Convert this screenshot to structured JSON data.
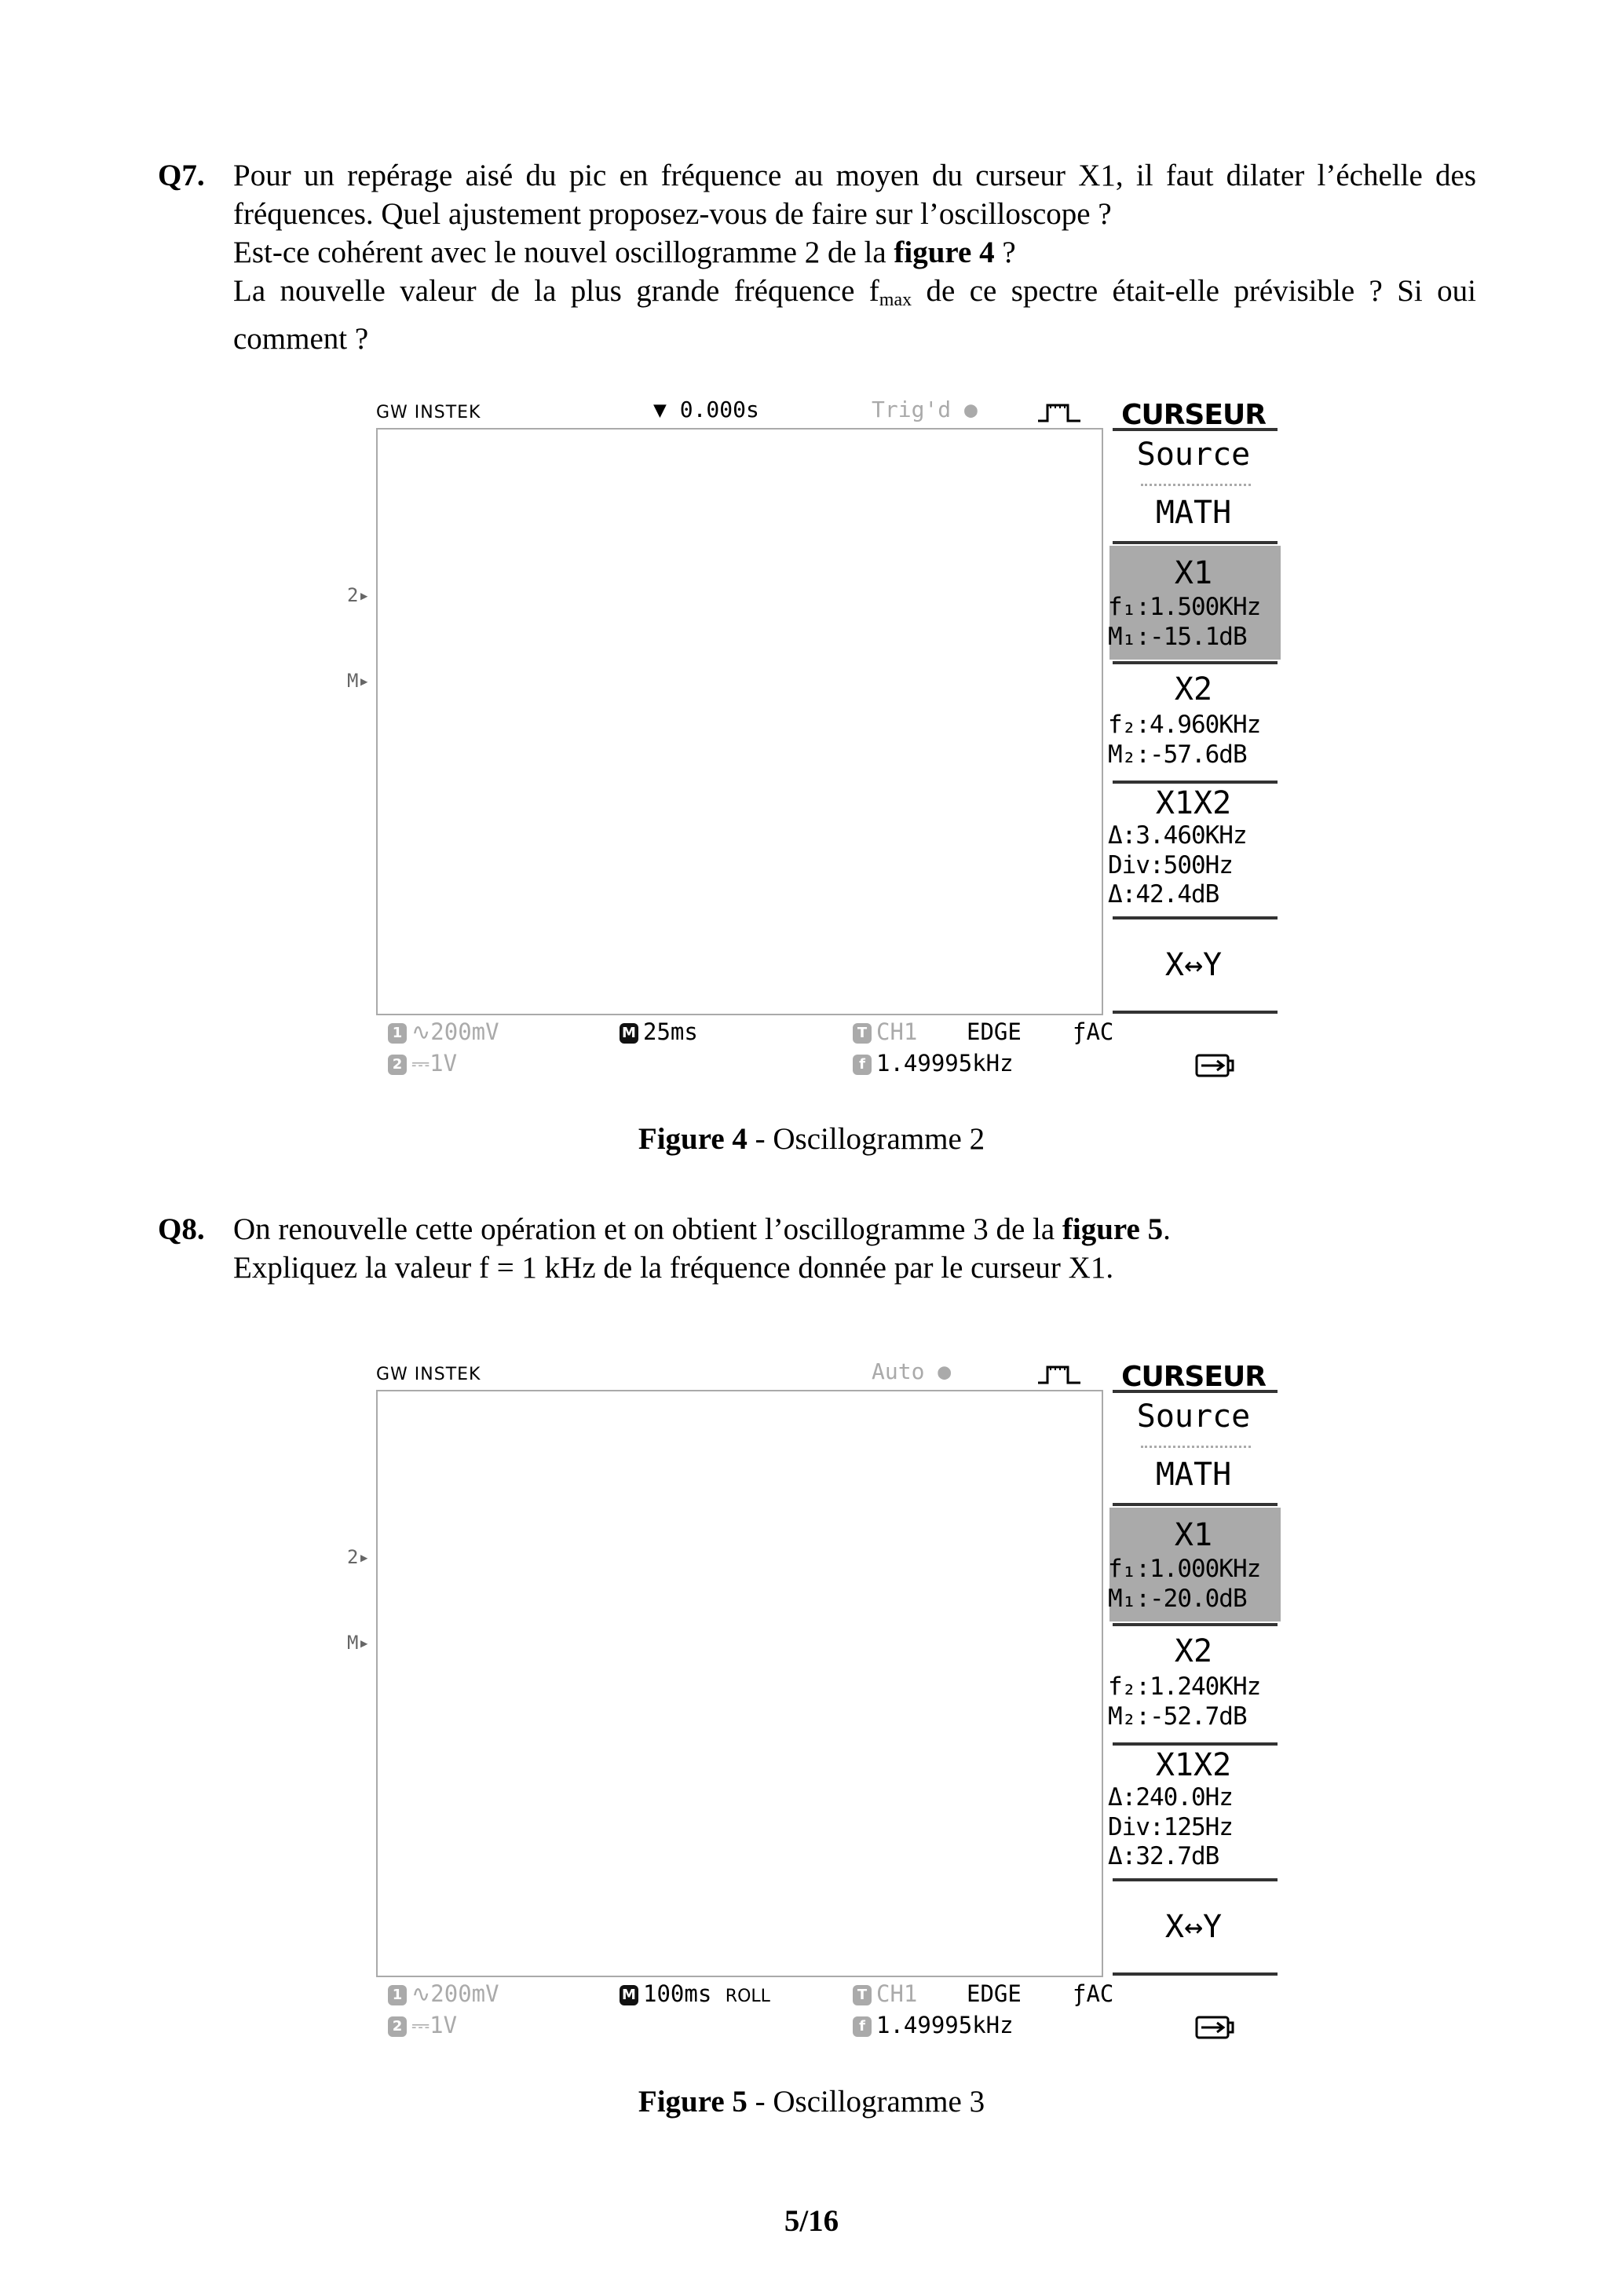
{
  "q7": {
    "number": "Q7.",
    "line1": "Pour un repérage aisé du pic en fréquence au moyen du curseur X1, il faut dilater l’échelle des",
    "line2": "fréquences. Quel ajustement proposez-vous de faire sur l’oscilloscope ?",
    "line3_a": "Est-ce cohérent avec le nouvel oscillogramme 2 de la ",
    "line3_bold": "figure 4",
    "line3_b": " ?",
    "line4_a": "La nouvelle valeur de la plus grande fréquence f",
    "line4_sub": "max",
    "line4_b": " de ce spectre était-elle prévisible ? Si oui",
    "line5": "comment ?"
  },
  "q8": {
    "number": "Q8.",
    "line1_a": "On renouvelle cette opération et on obtient l’oscillogramme 3 de la ",
    "line1_bold": "figure 5",
    "line1_b": ".",
    "line2": "Expliquez la valeur f = 1 kHz de la fréquence donnée par le curseur X1."
  },
  "fig4": {
    "brand": "GW INSTEK",
    "time_offset": "▼ 0.000s",
    "trigger_status": "Trig'd",
    "menu_title": "CURSEUR",
    "source_label": "Source",
    "source_value": "MATH",
    "x1_label": "X1",
    "f1": "f₁:1.500KHz",
    "m1": "M₁:-15.1dB",
    "x2_label": "X2",
    "f2": "f₂:4.960KHz",
    "m2": "M₂:-57.6dB",
    "x1x2_label": "X1X2",
    "delta_f": "Δ:3.460KHz",
    "div": "Div:500Hz",
    "delta_db": "Δ:42.4dB",
    "swap": "X↔Y",
    "ch1_scale": "∿200mV",
    "ch2_scale": "⎓1V",
    "timebase": "25ms",
    "mode": "",
    "trig_source": "CH1",
    "trig_type": "EDGE",
    "coupling": "ƒAC",
    "frequency": "1.49995kHz",
    "caption_bold": "Figure 4",
    "caption_rest": " - Oscillogramme 2"
  },
  "fig5": {
    "brand": "GW INSTEK",
    "time_offset": "",
    "trigger_status": "Auto",
    "menu_title": "CURSEUR",
    "source_label": "Source",
    "source_value": "MATH",
    "x1_label": "X1",
    "f1": "f₁:1.000KHz",
    "m1": "M₁:-20.0dB",
    "x2_label": "X2",
    "f2": "f₂:1.240KHz",
    "m2": "M₂:-52.7dB",
    "x1x2_label": "X1X2",
    "delta_f": "Δ:240.0Hz",
    "div": "Div:125Hz",
    "delta_db": "Δ:32.7dB",
    "swap": "X↔Y",
    "ch1_scale": "∿200mV",
    "ch2_scale": "⎓1V",
    "timebase": "100ms",
    "mode": "ROLL",
    "trig_source": "CH1",
    "trig_type": "EDGE",
    "coupling": "ƒAC",
    "frequency": "1.49995kHz",
    "caption_bold": "Figure 5",
    "caption_rest": " - Oscillogramme 3"
  },
  "colors": {
    "trace_ch1": "#aaaaaa",
    "trace_math": "#333333",
    "highlight": "#aaaaaa"
  },
  "page_number": "5/16"
}
